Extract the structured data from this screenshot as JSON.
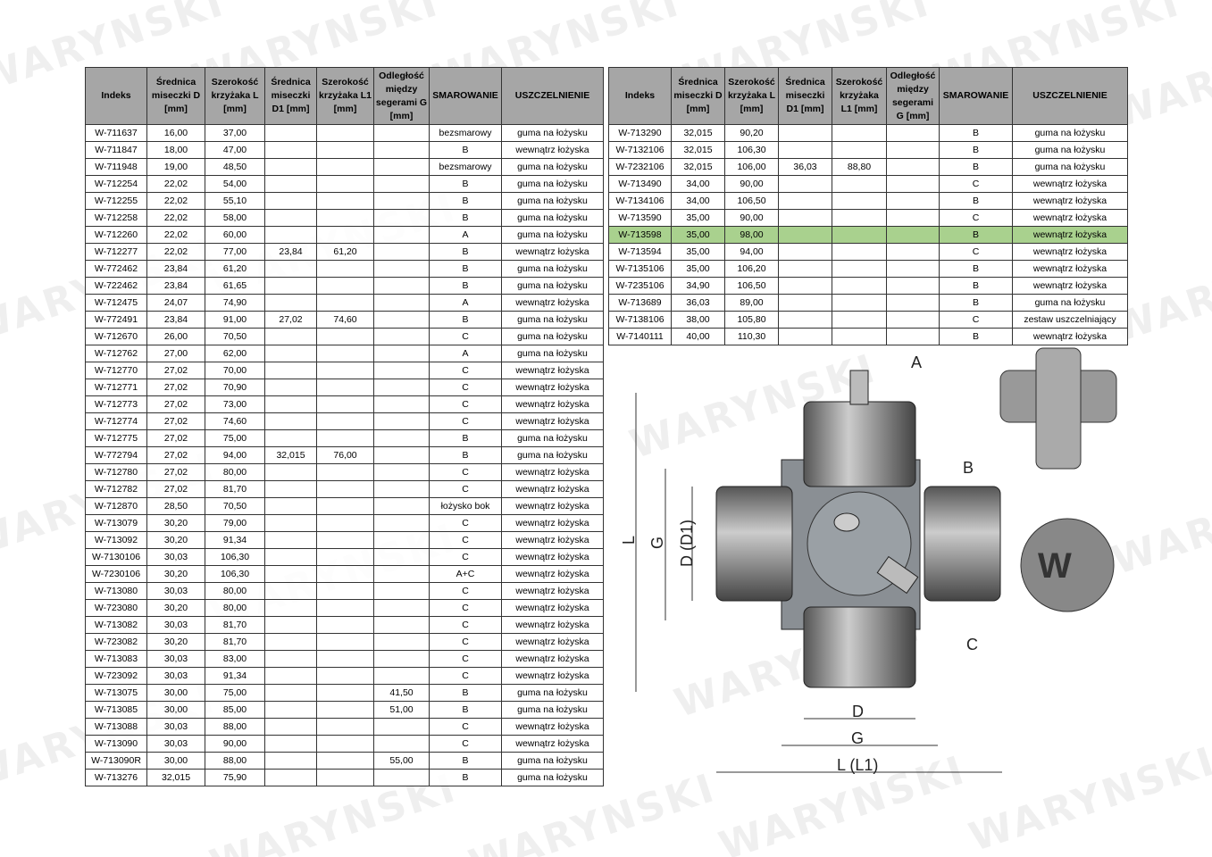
{
  "watermark": "WARYNSKI",
  "headers": [
    "Indeks",
    "Średnica miseczki D [mm]",
    "Szerokość krzyżaka L [mm]",
    "Średnica miseczki D1 [mm]",
    "Szerokość krzyżaka L1 [mm]",
    "Odległość między segerami G [mm]",
    "SMAROWANIE",
    "USZCZELNIENIE"
  ],
  "left_rows": [
    [
      "W-711637",
      "16,00",
      "37,00",
      "",
      "",
      "",
      "bezsmarowy",
      "guma na łożysku"
    ],
    [
      "W-711847",
      "18,00",
      "47,00",
      "",
      "",
      "",
      "B",
      "wewnątrz łożyska"
    ],
    [
      "W-711948",
      "19,00",
      "48,50",
      "",
      "",
      "",
      "bezsmarowy",
      "guma na łożysku"
    ],
    [
      "W-712254",
      "22,02",
      "54,00",
      "",
      "",
      "",
      "B",
      "guma na łożysku"
    ],
    [
      "W-712255",
      "22,02",
      "55,10",
      "",
      "",
      "",
      "B",
      "guma na łożysku"
    ],
    [
      "W-712258",
      "22,02",
      "58,00",
      "",
      "",
      "",
      "B",
      "guma na łożysku"
    ],
    [
      "W-712260",
      "22,02",
      "60,00",
      "",
      "",
      "",
      "A",
      "guma na łożysku"
    ],
    [
      "W-712277",
      "22,02",
      "77,00",
      "23,84",
      "61,20",
      "",
      "B",
      "wewnątrz łożyska"
    ],
    [
      "W-772462",
      "23,84",
      "61,20",
      "",
      "",
      "",
      "B",
      "guma na łożysku"
    ],
    [
      "W-722462",
      "23,84",
      "61,65",
      "",
      "",
      "",
      "B",
      "guma na łożysku"
    ],
    [
      "W-712475",
      "24,07",
      "74,90",
      "",
      "",
      "",
      "A",
      "wewnątrz łożyska"
    ],
    [
      "W-772491",
      "23,84",
      "91,00",
      "27,02",
      "74,60",
      "",
      "B",
      "guma na łożysku"
    ],
    [
      "W-712670",
      "26,00",
      "70,50",
      "",
      "",
      "",
      "C",
      "guma na łożysku"
    ],
    [
      "W-712762",
      "27,00",
      "62,00",
      "",
      "",
      "",
      "A",
      "guma na łożysku"
    ],
    [
      "W-712770",
      "27,02",
      "70,00",
      "",
      "",
      "",
      "C",
      "wewnątrz łożyska"
    ],
    [
      "W-712771",
      "27,02",
      "70,90",
      "",
      "",
      "",
      "C",
      "wewnątrz łożyska"
    ],
    [
      "W-712773",
      "27,02",
      "73,00",
      "",
      "",
      "",
      "C",
      "wewnątrz łożyska"
    ],
    [
      "W-712774",
      "27,02",
      "74,60",
      "",
      "",
      "",
      "C",
      "wewnątrz łożyska"
    ],
    [
      "W-712775",
      "27,02",
      "75,00",
      "",
      "",
      "",
      "B",
      "guma na łożysku"
    ],
    [
      "W-772794",
      "27,02",
      "94,00",
      "32,015",
      "76,00",
      "",
      "B",
      "guma na łożysku"
    ],
    [
      "W-712780",
      "27,02",
      "80,00",
      "",
      "",
      "",
      "C",
      "wewnątrz łożyska"
    ],
    [
      "W-712782",
      "27,02",
      "81,70",
      "",
      "",
      "",
      "C",
      "wewnątrz łożyska"
    ],
    [
      "W-712870",
      "28,50",
      "70,50",
      "",
      "",
      "",
      "łożysko bok",
      "wewnątrz łożyska"
    ],
    [
      "W-713079",
      "30,20",
      "79,00",
      "",
      "",
      "",
      "C",
      "wewnątrz łożyska"
    ],
    [
      "W-713092",
      "30,20",
      "91,34",
      "",
      "",
      "",
      "C",
      "wewnątrz łożyska"
    ],
    [
      "W-7130106",
      "30,03",
      "106,30",
      "",
      "",
      "",
      "C",
      "wewnątrz łożyska"
    ],
    [
      "W-7230106",
      "30,20",
      "106,30",
      "",
      "",
      "",
      "A+C",
      "wewnątrz łożyska"
    ],
    [
      "W-713080",
      "30,03",
      "80,00",
      "",
      "",
      "",
      "C",
      "wewnątrz łożyska"
    ],
    [
      "W-723080",
      "30,20",
      "80,00",
      "",
      "",
      "",
      "C",
      "wewnątrz łożyska"
    ],
    [
      "W-713082",
      "30,03",
      "81,70",
      "",
      "",
      "",
      "C",
      "wewnątrz łożyska"
    ],
    [
      "W-723082",
      "30,20",
      "81,70",
      "",
      "",
      "",
      "C",
      "wewnątrz łożyska"
    ],
    [
      "W-713083",
      "30,03",
      "83,00",
      "",
      "",
      "",
      "C",
      "wewnątrz łożyska"
    ],
    [
      "W-723092",
      "30,03",
      "91,34",
      "",
      "",
      "",
      "C",
      "wewnątrz łożyska"
    ],
    [
      "W-713075",
      "30,00",
      "75,00",
      "",
      "",
      "41,50",
      "B",
      "guma na łożysku"
    ],
    [
      "W-713085",
      "30,00",
      "85,00",
      "",
      "",
      "51,00",
      "B",
      "guma na łożysku"
    ],
    [
      "W-713088",
      "30,03",
      "88,00",
      "",
      "",
      "",
      "C",
      "wewnątrz łożyska"
    ],
    [
      "W-713090",
      "30,03",
      "90,00",
      "",
      "",
      "",
      "C",
      "wewnątrz łożyska"
    ],
    [
      "W-713090R",
      "30,00",
      "88,00",
      "",
      "",
      "55,00",
      "B",
      "guma na łożysku"
    ],
    [
      "W-713276",
      "32,015",
      "75,90",
      "",
      "",
      "",
      "B",
      "guma na łożysku"
    ]
  ],
  "right_rows": [
    [
      "W-713290",
      "32,015",
      "90,20",
      "",
      "",
      "",
      "B",
      "guma na łożysku"
    ],
    [
      "W-7132106",
      "32,015",
      "106,30",
      "",
      "",
      "",
      "B",
      "guma na łożysku"
    ],
    [
      "W-7232106",
      "32,015",
      "106,00",
      "36,03",
      "88,80",
      "",
      "B",
      "guma na łożysku"
    ],
    [
      "W-713490",
      "34,00",
      "90,00",
      "",
      "",
      "",
      "C",
      "wewnątrz łożyska"
    ],
    [
      "W-7134106",
      "34,00",
      "106,50",
      "",
      "",
      "",
      "B",
      "wewnątrz łożyska"
    ],
    [
      "W-713590",
      "35,00",
      "90,00",
      "",
      "",
      "",
      "C",
      "wewnątrz łożyska"
    ],
    [
      "W-713598",
      "35,00",
      "98,00",
      "",
      "",
      "",
      "B",
      "wewnątrz łożyska"
    ],
    [
      "W-713594",
      "35,00",
      "94,00",
      "",
      "",
      "",
      "C",
      "wewnątrz łożyska"
    ],
    [
      "W-7135106",
      "35,00",
      "106,20",
      "",
      "",
      "",
      "B",
      "wewnątrz łożyska"
    ],
    [
      "W-7235106",
      "34,90",
      "106,50",
      "",
      "",
      "",
      "B",
      "wewnątrz łożyska"
    ],
    [
      "W-713689",
      "36,03",
      "89,00",
      "",
      "",
      "",
      "B",
      "guma na łożysku"
    ],
    [
      "W-7138106",
      "38,00",
      "105,80",
      "",
      "",
      "",
      "C",
      "zestaw uszczelniający"
    ],
    [
      "W-7140111",
      "40,00",
      "110,30",
      "",
      "",
      "",
      "B",
      "wewnątrz łożyska"
    ]
  ],
  "highlighted_index": "W-713598",
  "highlight_color": "#a9d18e",
  "drawing": {
    "A": "A",
    "B": "B",
    "C": "C",
    "L": "L",
    "G_left": "G",
    "D_D1": "D (D1)",
    "D": "D",
    "G": "G",
    "L_L1": "L (L1)"
  }
}
